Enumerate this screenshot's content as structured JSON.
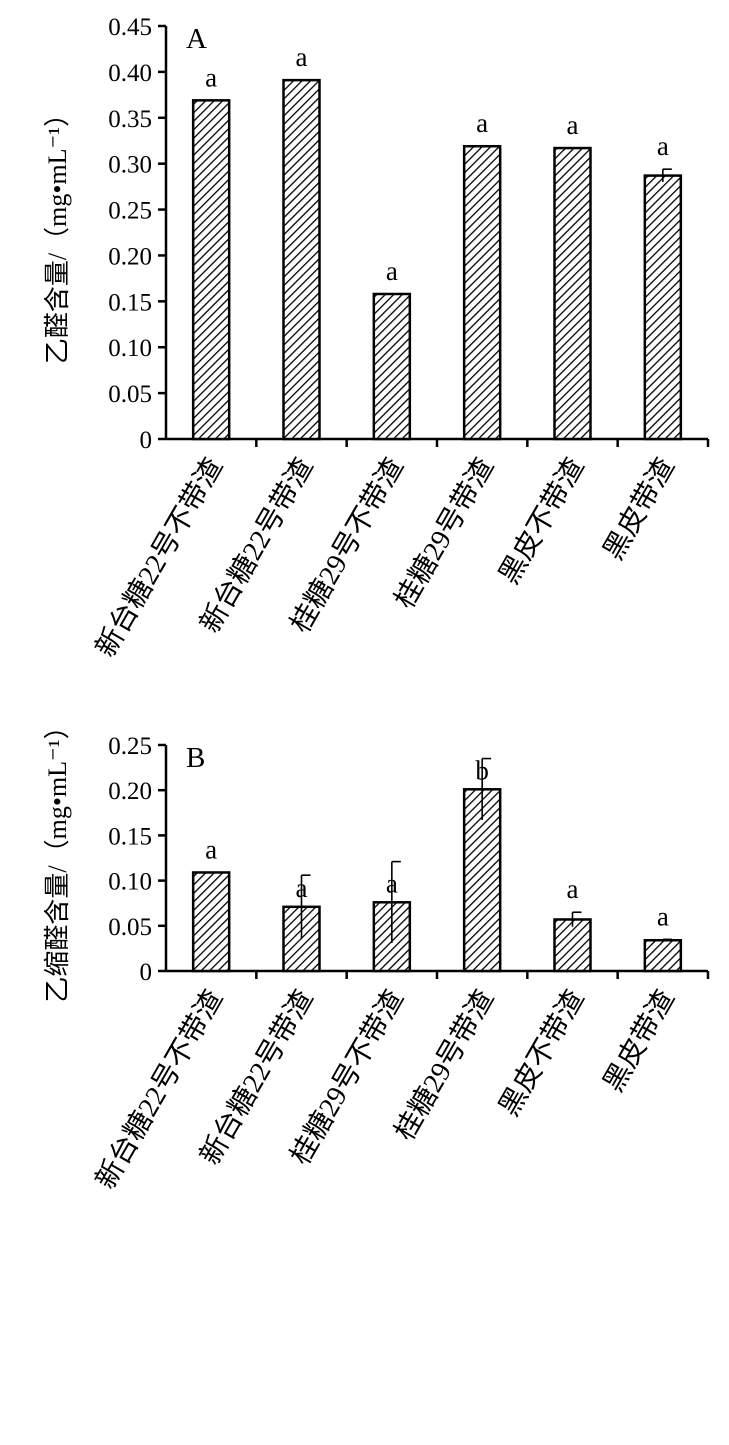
{
  "chart_data": [
    {
      "type": "bar",
      "panel_label": "A",
      "ylabel": "乙醛含量/（mg•mL⁻¹）",
      "ylim": [
        0,
        0.45
      ],
      "yticks": [
        "0",
        "0.05",
        "0.10",
        "0.15",
        "0.20",
        "0.25",
        "0.30",
        "0.35",
        "0.40",
        "0.45"
      ],
      "categories": [
        "新台糖22号不带渣",
        "新台糖22号带渣",
        "桂糖29号不带渣",
        "桂糖29号带渣",
        "黑皮不带渣",
        "黑皮带渣"
      ],
      "values": [
        0.369,
        0.391,
        0.158,
        0.319,
        0.317,
        0.287
      ],
      "errors": [
        0.0,
        0.0,
        0.0,
        0.0,
        0.0,
        0.007
      ],
      "significance": [
        "a",
        "a",
        "a",
        "a",
        "a",
        "a"
      ],
      "bar_pattern": "diagonal-hatch",
      "grid": false
    },
    {
      "type": "bar",
      "panel_label": "B",
      "ylabel": "乙缩醛含量/（mg•mL⁻¹）",
      "ylim": [
        0,
        0.25
      ],
      "yticks": [
        "0",
        "0.05",
        "0.10",
        "0.15",
        "0.20",
        "0.25"
      ],
      "categories": [
        "新台糖22号不带渣",
        "新台糖22号带渣",
        "桂糖29号不带渣",
        "桂糖29号带渣",
        "黑皮不带渣",
        "黑皮带渣"
      ],
      "values": [
        0.109,
        0.071,
        0.076,
        0.201,
        0.057,
        0.034
      ],
      "errors": [
        0.0,
        0.035,
        0.045,
        0.034,
        0.008,
        0.001
      ],
      "significance": [
        "a",
        "a",
        "a",
        "b",
        "a",
        "a"
      ],
      "bar_pattern": "diagonal-hatch",
      "grid": false
    }
  ],
  "colors": {
    "axis": "#000000",
    "bar_fill": "#ffffff",
    "hatch": "#000000"
  }
}
